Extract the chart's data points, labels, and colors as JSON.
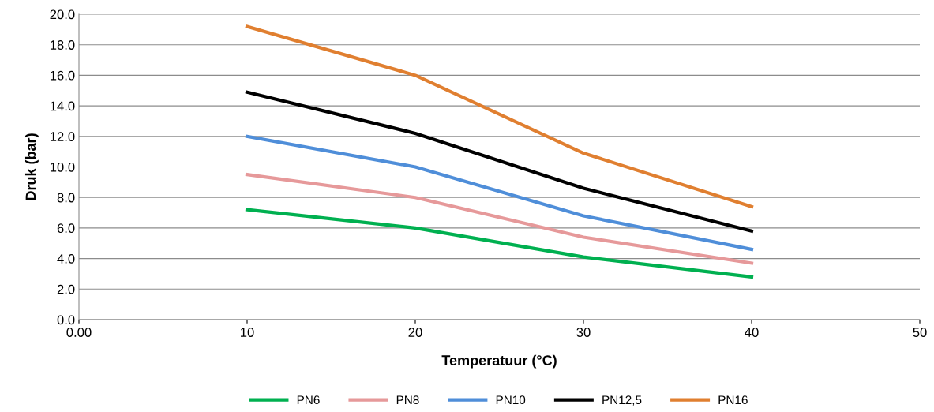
{
  "chart_data": {
    "type": "line",
    "xlabel": "Temperatuur (°C)",
    "ylabel": "Druk (bar)",
    "x": [
      10,
      20,
      30,
      40
    ],
    "series": [
      {
        "name": "PN6",
        "color": "#00b050",
        "values": [
          7.2,
          6.0,
          4.1,
          2.8
        ]
      },
      {
        "name": "PN8",
        "color": "#e6999a",
        "values": [
          9.5,
          8.0,
          5.4,
          3.7
        ]
      },
      {
        "name": "PN10",
        "color": "#4f8ed9",
        "values": [
          12.0,
          10.0,
          6.8,
          4.6
        ]
      },
      {
        "name": "PN12,5",
        "color": "#000000",
        "values": [
          14.9,
          12.2,
          8.6,
          5.8
        ]
      },
      {
        "name": "PN16",
        "color": "#e07f30",
        "values": [
          19.2,
          16.0,
          10.9,
          7.4
        ]
      }
    ],
    "xlim": [
      0,
      50
    ],
    "xticks": [
      {
        "value": 0,
        "label": "0.00"
      },
      10,
      20,
      30,
      40,
      50
    ],
    "ylim": [
      0,
      20
    ],
    "yticks": [
      {
        "value": 0,
        "label": "0.0"
      },
      {
        "value": 2,
        "label": "2.0"
      },
      {
        "value": 4,
        "label": "4.0"
      },
      {
        "value": 6,
        "label": "6.0"
      },
      {
        "value": 8,
        "label": "8.0"
      },
      {
        "value": 10,
        "label": "10.0"
      },
      {
        "value": 12,
        "label": "12.0"
      },
      {
        "value": 14,
        "label": "14.0"
      },
      {
        "value": 16,
        "label": "16.0"
      },
      {
        "value": 18,
        "label": "18.0"
      },
      {
        "value": 20,
        "label": "20.0"
      }
    ],
    "grid": "y",
    "legend": "bottom",
    "marker": "none",
    "line_style": "solid"
  }
}
